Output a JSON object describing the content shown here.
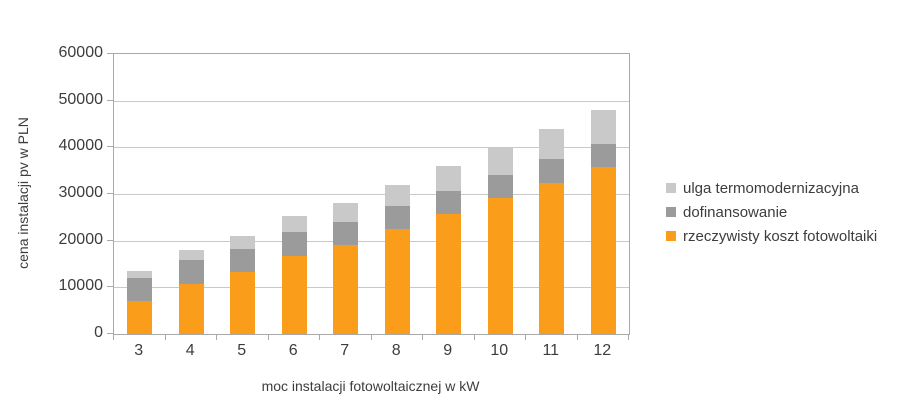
{
  "chart_data": {
    "type": "bar",
    "stacked": true,
    "title": "",
    "xlabel": "moc instalacji fotowoltaicznej w kW",
    "ylabel": "cena instalacji pv w PLN",
    "categories": [
      "3",
      "4",
      "5",
      "6",
      "7",
      "8",
      "9",
      "10",
      "11",
      "12"
    ],
    "series": [
      {
        "name": "rzeczywisty koszt fotowoltaiki",
        "color": "#FA9D1B",
        "values": [
          7100,
          10800,
          13300,
          16800,
          19100,
          22400,
          25700,
          29100,
          32400,
          35700
        ]
      },
      {
        "name": "dofinansowanie",
        "color": "#9B9B9B",
        "values": [
          5000,
          5000,
          5000,
          5000,
          5000,
          5000,
          5000,
          5000,
          5000,
          5000
        ]
      },
      {
        "name": "ulga termomodernizacyjna",
        "color": "#C9C9C9",
        "values": [
          1400,
          2200,
          2700,
          3400,
          3900,
          4600,
          5300,
          5900,
          6600,
          7300
        ]
      }
    ],
    "stack_totals": [
      13500,
      18000,
      21000,
      25200,
      28000,
      32000,
      36000,
      40000,
      44000,
      48000
    ],
    "ylim": [
      0,
      60000
    ],
    "ytick_step": 10000,
    "yticks": [
      "0",
      "10000",
      "20000",
      "30000",
      "40000",
      "50000",
      "60000"
    ],
    "grid": true,
    "legend_position": "right",
    "legend_order_top_to_bottom": [
      "ulga termomodernizacyjna",
      "dofinansowanie",
      "rzeczywisty koszt fotowoltaiki"
    ]
  }
}
